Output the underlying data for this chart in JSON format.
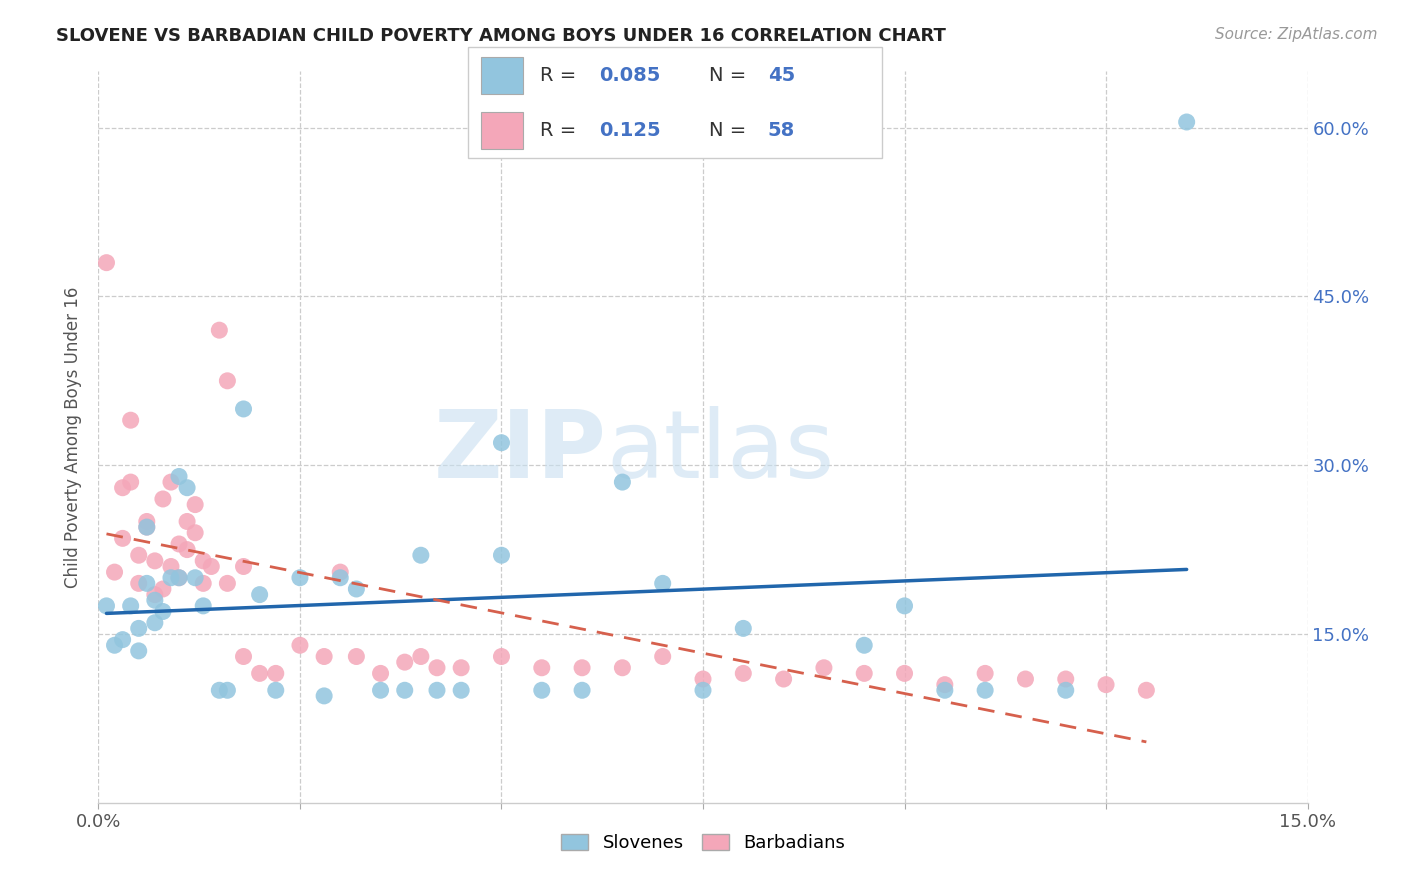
{
  "title": "SLOVENE VS BARBADIAN CHILD POVERTY AMONG BOYS UNDER 16 CORRELATION CHART",
  "source": "Source: ZipAtlas.com",
  "ylabel": "Child Poverty Among Boys Under 16",
  "xlim": [
    0.0,
    0.15
  ],
  "ylim": [
    0.0,
    0.65
  ],
  "ytick_positions": [
    0.15,
    0.3,
    0.45,
    0.6
  ],
  "ytick_labels": [
    "15.0%",
    "30.0%",
    "45.0%",
    "60.0%"
  ],
  "xtick_positions": [
    0.0,
    0.025,
    0.05,
    0.075,
    0.1,
    0.125,
    0.15
  ],
  "xtick_labels_show": {
    "0.0": "0.0%",
    "0.15": "15.0%"
  },
  "slovene_color": "#92C5DE",
  "barbadian_color": "#F4A7B9",
  "slovene_line_color": "#2166AC",
  "barbadian_line_color": "#D6604D",
  "legend_R_slovene": "0.085",
  "legend_N_slovene": "45",
  "legend_R_barbadian": "0.125",
  "legend_N_barbadian": "58",
  "slovene_x": [
    0.001,
    0.002,
    0.003,
    0.004,
    0.005,
    0.005,
    0.006,
    0.006,
    0.007,
    0.007,
    0.008,
    0.009,
    0.01,
    0.01,
    0.011,
    0.012,
    0.013,
    0.015,
    0.016,
    0.018,
    0.02,
    0.022,
    0.025,
    0.028,
    0.03,
    0.032,
    0.035,
    0.038,
    0.04,
    0.042,
    0.045,
    0.05,
    0.05,
    0.055,
    0.06,
    0.065,
    0.07,
    0.075,
    0.08,
    0.095,
    0.1,
    0.105,
    0.11,
    0.12,
    0.135
  ],
  "slovene_y": [
    0.175,
    0.14,
    0.145,
    0.175,
    0.135,
    0.155,
    0.195,
    0.245,
    0.18,
    0.16,
    0.17,
    0.2,
    0.29,
    0.2,
    0.28,
    0.2,
    0.175,
    0.1,
    0.1,
    0.35,
    0.185,
    0.1,
    0.2,
    0.095,
    0.2,
    0.19,
    0.1,
    0.1,
    0.22,
    0.1,
    0.1,
    0.32,
    0.22,
    0.1,
    0.1,
    0.285,
    0.195,
    0.1,
    0.155,
    0.14,
    0.175,
    0.1,
    0.1,
    0.1,
    0.605
  ],
  "barbadian_x": [
    0.001,
    0.002,
    0.003,
    0.003,
    0.004,
    0.004,
    0.005,
    0.005,
    0.006,
    0.006,
    0.007,
    0.007,
    0.008,
    0.008,
    0.009,
    0.009,
    0.01,
    0.01,
    0.011,
    0.011,
    0.012,
    0.012,
    0.013,
    0.013,
    0.014,
    0.015,
    0.016,
    0.016,
    0.018,
    0.018,
    0.02,
    0.022,
    0.025,
    0.028,
    0.03,
    0.032,
    0.035,
    0.038,
    0.04,
    0.042,
    0.045,
    0.05,
    0.055,
    0.06,
    0.065,
    0.07,
    0.075,
    0.08,
    0.085,
    0.09,
    0.095,
    0.1,
    0.105,
    0.11,
    0.115,
    0.12,
    0.125,
    0.13
  ],
  "barbadian_y": [
    0.48,
    0.205,
    0.235,
    0.28,
    0.285,
    0.34,
    0.22,
    0.195,
    0.25,
    0.245,
    0.185,
    0.215,
    0.19,
    0.27,
    0.21,
    0.285,
    0.23,
    0.2,
    0.25,
    0.225,
    0.24,
    0.265,
    0.195,
    0.215,
    0.21,
    0.42,
    0.195,
    0.375,
    0.21,
    0.13,
    0.115,
    0.115,
    0.14,
    0.13,
    0.205,
    0.13,
    0.115,
    0.125,
    0.13,
    0.12,
    0.12,
    0.13,
    0.12,
    0.12,
    0.12,
    0.13,
    0.11,
    0.115,
    0.11,
    0.12,
    0.115,
    0.115,
    0.105,
    0.115,
    0.11,
    0.11,
    0.105,
    0.1
  ]
}
